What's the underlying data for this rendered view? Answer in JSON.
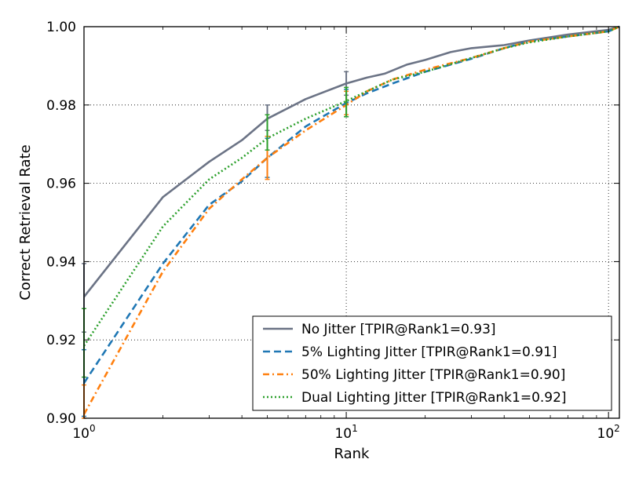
{
  "chart_data": {
    "type": "line",
    "title": "",
    "xlabel": "Rank",
    "ylabel": "Correct Retrieval Rate",
    "xscale": "log",
    "xlim": [
      1,
      110
    ],
    "ylim": [
      0.9,
      1.0
    ],
    "grid": true,
    "legend_position": "bottom-right",
    "x_ticks": [
      {
        "value": 1,
        "base": "10",
        "exp": "0"
      },
      {
        "value": 10,
        "base": "10",
        "exp": "1"
      },
      {
        "value": 100,
        "base": "10",
        "exp": "2"
      }
    ],
    "y_ticks": [
      {
        "value": 0.9,
        "label": "0.90"
      },
      {
        "value": 0.92,
        "label": "0.92"
      },
      {
        "value": 0.94,
        "label": "0.94"
      },
      {
        "value": 0.96,
        "label": "0.96"
      },
      {
        "value": 0.98,
        "label": "0.98"
      },
      {
        "value": 1.0,
        "label": "1.00"
      }
    ],
    "series": [
      {
        "name": "No Jitter [TPIR@Rank1=0.93]",
        "color": "#6b7385",
        "dash": "solid",
        "points": [
          [
            1,
            0.931
          ],
          [
            2,
            0.9565
          ],
          [
            3,
            0.9655
          ],
          [
            4,
            0.971
          ],
          [
            5,
            0.9765
          ],
          [
            7,
            0.9815
          ],
          [
            8,
            0.983
          ],
          [
            10,
            0.9855
          ],
          [
            12,
            0.987
          ],
          [
            14,
            0.988
          ],
          [
            17,
            0.9903
          ],
          [
            20,
            0.9915
          ],
          [
            25,
            0.9935
          ],
          [
            30,
            0.9945
          ],
          [
            40,
            0.9953
          ],
          [
            50,
            0.9965
          ],
          [
            70,
            0.998
          ],
          [
            100,
            0.9992
          ],
          [
            110,
            1.0
          ]
        ],
        "error_bars": [
          {
            "x": 1,
            "low": 0.922,
            "high": 0.9395
          },
          {
            "x": 5,
            "low": 0.9735,
            "high": 0.98
          },
          {
            "x": 10,
            "low": 0.9825,
            "high": 0.9885
          }
        ]
      },
      {
        "name": "5% Lighting Jitter [TPIR@Rank1=0.91]",
        "color": "#1f77b4",
        "dash": "dashed",
        "points": [
          [
            1,
            0.909
          ],
          [
            2,
            0.9395
          ],
          [
            3,
            0.9545
          ],
          [
            4,
            0.9605
          ],
          [
            5,
            0.9665
          ],
          [
            7,
            0.9745
          ],
          [
            10,
            0.9805
          ],
          [
            12,
            0.983
          ],
          [
            15,
            0.9855
          ],
          [
            20,
            0.9885
          ],
          [
            30,
            0.9918
          ],
          [
            40,
            0.9945
          ],
          [
            50,
            0.9963
          ],
          [
            70,
            0.9975
          ],
          [
            100,
            0.9988
          ],
          [
            110,
            1.0
          ]
        ],
        "error_bars": [
          {
            "x": 1,
            "low": 0.9005,
            "high": 0.9175
          },
          {
            "x": 5,
            "low": 0.9615,
            "high": 0.9715
          },
          {
            "x": 10,
            "low": 0.977,
            "high": 0.984
          }
        ]
      },
      {
        "name": "50% Lighting Jitter [TPIR@Rank1=0.90]",
        "color": "#ff7f0e",
        "dash": "dashdot",
        "points": [
          [
            1,
            0.901
          ],
          [
            2,
            0.9375
          ],
          [
            3,
            0.9535
          ],
          [
            4,
            0.961
          ],
          [
            5,
            0.9665
          ],
          [
            7,
            0.9735
          ],
          [
            10,
            0.98
          ],
          [
            12,
            0.9835
          ],
          [
            15,
            0.9865
          ],
          [
            20,
            0.989
          ],
          [
            30,
            0.992
          ],
          [
            40,
            0.9945
          ],
          [
            50,
            0.9962
          ],
          [
            70,
            0.9975
          ],
          [
            100,
            0.9988
          ],
          [
            110,
            1.0
          ]
        ],
        "error_bars": [
          {
            "x": 1,
            "low": 0.9,
            "high": 0.9085
          },
          {
            "x": 5,
            "low": 0.961,
            "high": 0.972
          },
          {
            "x": 10,
            "low": 0.9775,
            "high": 0.9835
          }
        ]
      },
      {
        "name": "Dual Lighting Jitter [TPIR@Rank1=0.92]",
        "color": "#2ca02c",
        "dash": "dotted",
        "points": [
          [
            1,
            0.9185
          ],
          [
            2,
            0.949
          ],
          [
            3,
            0.961
          ],
          [
            4,
            0.9665
          ],
          [
            5,
            0.9715
          ],
          [
            7,
            0.9765
          ],
          [
            10,
            0.981
          ],
          [
            12,
            0.9835
          ],
          [
            15,
            0.9865
          ],
          [
            20,
            0.9885
          ],
          [
            30,
            0.992
          ],
          [
            40,
            0.9945
          ],
          [
            50,
            0.996
          ],
          [
            70,
            0.9975
          ],
          [
            100,
            0.9988
          ],
          [
            110,
            1.0
          ]
        ],
        "error_bars": [
          {
            "x": 1,
            "low": 0.9105,
            "high": 0.928
          },
          {
            "x": 5,
            "low": 0.9685,
            "high": 0.9775
          },
          {
            "x": 10,
            "low": 0.977,
            "high": 0.9845
          }
        ]
      }
    ]
  }
}
